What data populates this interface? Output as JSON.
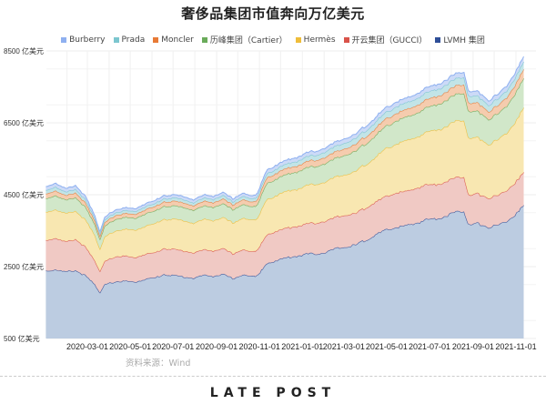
{
  "title": "奢侈品集团市值奔向万亿美元",
  "legend": [
    {
      "label": "Burberry",
      "color": "#8fb0f0"
    },
    {
      "label": "Prada",
      "color": "#7cc6cf"
    },
    {
      "label": "Moncler",
      "color": "#e87a36"
    },
    {
      "label": "历峰集团（Cartier）",
      "color": "#6aab5a"
    },
    {
      "label": "Hermès",
      "color": "#efbd3a"
    },
    {
      "label": "开云集团（GUCCI）",
      "color": "#d9534a"
    },
    {
      "label": "LVMH 集团",
      "color": "#2f4f98"
    }
  ],
  "source": "资料来源：Wind",
  "brand": {
    "pre": "L",
    "mid": "ATE P",
    "o": "O",
    "post": "ST"
  },
  "chart_data": {
    "type": "area",
    "stacked": true,
    "title": "奢侈品集团市值奔向万亿美元",
    "ylabel": "亿美元",
    "ylim": [
      500,
      8500
    ],
    "yticks": [
      "8500 亿美元",
      "6500 亿美元",
      "4500 亿美元",
      "2500 亿美元",
      "500 亿美元"
    ],
    "ytick_values": [
      8500,
      6500,
      4500,
      2500,
      500
    ],
    "xticks": [
      "2020-03-01",
      "2020-05-01",
      "2020-07-01",
      "2020-09-01",
      "2020-11-01",
      "2021-01-01",
      "2021-03-01",
      "2021-05-01",
      "2021-07-01",
      "2021-09-01",
      "2021-11-01"
    ],
    "grid": true,
    "legend_position": "top",
    "x": [
      "2020-01-02",
      "2020-01-16",
      "2020-01-30",
      "2020-02-13",
      "2020-02-27",
      "2020-03-12",
      "2020-03-19",
      "2020-03-26",
      "2020-04-09",
      "2020-04-23",
      "2020-05-07",
      "2020-05-21",
      "2020-06-04",
      "2020-06-18",
      "2020-07-02",
      "2020-07-16",
      "2020-07-30",
      "2020-08-13",
      "2020-08-27",
      "2020-09-10",
      "2020-09-24",
      "2020-10-08",
      "2020-10-22",
      "2020-10-29",
      "2020-11-05",
      "2020-11-12",
      "2020-11-26",
      "2020-12-10",
      "2020-12-24",
      "2021-01-07",
      "2021-01-21",
      "2021-02-04",
      "2021-02-18",
      "2021-03-04",
      "2021-03-18",
      "2021-04-01",
      "2021-04-15",
      "2021-04-29",
      "2021-05-13",
      "2021-05-27",
      "2021-06-10",
      "2021-06-24",
      "2021-07-08",
      "2021-07-22",
      "2021-08-05",
      "2021-08-19",
      "2021-08-26",
      "2021-09-09",
      "2021-09-23",
      "2021-10-07",
      "2021-10-21",
      "2021-11-04",
      "2021-11-12"
    ],
    "series": [
      {
        "name": "LVMH 集团",
        "values": [
          2380,
          2420,
          2350,
          2400,
          2250,
          1990,
          1780,
          2000,
          2080,
          2100,
          2060,
          2150,
          2180,
          2290,
          2250,
          2220,
          2180,
          2260,
          2240,
          2280,
          2170,
          2270,
          2220,
          2280,
          2420,
          2600,
          2680,
          2750,
          2800,
          2850,
          2860,
          2900,
          3000,
          3050,
          3100,
          3250,
          3380,
          3500,
          3600,
          3620,
          3700,
          3800,
          3830,
          3900,
          4000,
          4060,
          3650,
          3700,
          3600,
          3650,
          3800,
          4000,
          4200
        ]
      },
      {
        "name": "开云集团（GUCCI）",
        "values": [
          860,
          870,
          840,
          860,
          800,
          660,
          590,
          650,
          690,
          700,
          680,
          690,
          700,
          720,
          730,
          720,
          700,
          710,
          700,
          720,
          690,
          700,
          690,
          700,
          770,
          800,
          810,
          830,
          820,
          840,
          860,
          870,
          880,
          880,
          880,
          900,
          910,
          930,
          950,
          960,
          960,
          970,
          960,
          950,
          960,
          950,
          820,
          830,
          810,
          830,
          860,
          900,
          920
        ]
      },
      {
        "name": "Hermès",
        "values": [
          780,
          800,
          780,
          790,
          760,
          700,
          620,
          680,
          720,
          740,
          760,
          780,
          800,
          820,
          830,
          840,
          830,
          840,
          850,
          860,
          860,
          880,
          870,
          880,
          940,
          980,
          1000,
          1020,
          1040,
          1060,
          1080,
          1100,
          1110,
          1140,
          1160,
          1210,
          1250,
          1320,
          1360,
          1400,
          1420,
          1460,
          1500,
          1540,
          1560,
          1580,
          1580,
          1550,
          1500,
          1540,
          1620,
          1720,
          1780
        ]
      },
      {
        "name": "历峰集团（Cartier）",
        "values": [
          380,
          390,
          370,
          380,
          350,
          300,
          270,
          300,
          320,
          330,
          330,
          340,
          350,
          360,
          370,
          370,
          360,
          370,
          370,
          380,
          370,
          380,
          370,
          380,
          420,
          450,
          460,
          470,
          480,
          490,
          500,
          510,
          520,
          540,
          560,
          580,
          600,
          620,
          640,
          650,
          660,
          680,
          700,
          720,
          740,
          760,
          740,
          730,
          700,
          720,
          760,
          800,
          820
        ]
      },
      {
        "name": "Moncler",
        "values": [
          130,
          135,
          125,
          130,
          120,
          100,
          90,
          100,
          110,
          110,
          110,
          115,
          120,
          125,
          130,
          130,
          125,
          130,
          130,
          135,
          130,
          135,
          130,
          135,
          145,
          155,
          160,
          165,
          165,
          170,
          170,
          175,
          180,
          185,
          190,
          195,
          200,
          205,
          210,
          210,
          215,
          220,
          225,
          230,
          235,
          240,
          235,
          230,
          220,
          225,
          235,
          245,
          250
        ]
      },
      {
        "name": "Prada",
        "values": [
          100,
          105,
          95,
          100,
          90,
          75,
          65,
          75,
          80,
          80,
          80,
          85,
          85,
          90,
          90,
          90,
          85,
          90,
          90,
          95,
          90,
          95,
          90,
          95,
          105,
          115,
          120,
          125,
          130,
          135,
          140,
          150,
          155,
          160,
          165,
          170,
          175,
          180,
          185,
          185,
          190,
          195,
          195,
          200,
          200,
          205,
          195,
          190,
          180,
          185,
          195,
          205,
          210
        ]
      },
      {
        "name": "Burberry",
        "values": [
          100,
          105,
          100,
          100,
          90,
          70,
          60,
          70,
          75,
          75,
          75,
          80,
          80,
          85,
          85,
          85,
          80,
          85,
          85,
          85,
          80,
          85,
          80,
          85,
          90,
          100,
          105,
          105,
          110,
          110,
          110,
          110,
          115,
          120,
          120,
          125,
          125,
          130,
          130,
          130,
          130,
          135,
          135,
          135,
          140,
          140,
          130,
          130,
          125,
          130,
          135,
          140,
          145
        ]
      }
    ]
  }
}
